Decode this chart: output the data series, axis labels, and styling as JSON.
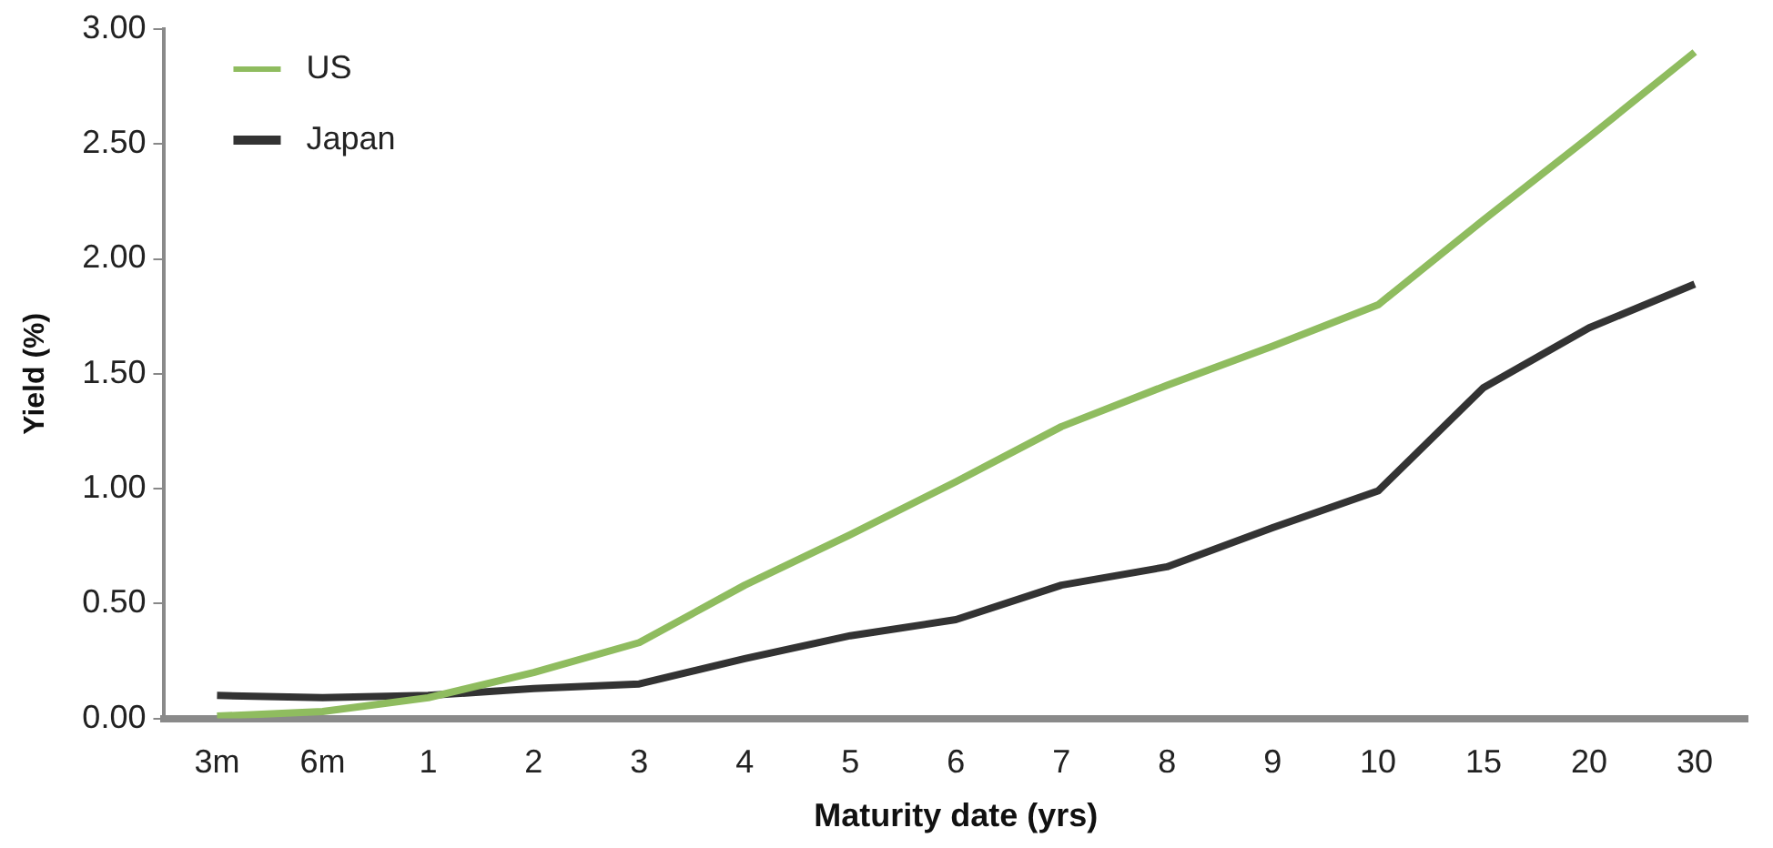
{
  "chart_data": {
    "type": "line",
    "xlabel": "Maturity date (yrs)",
    "ylabel": "Yield (%)",
    "categories": [
      "3m",
      "6m",
      "1",
      "2",
      "3",
      "4",
      "5",
      "6",
      "7",
      "8",
      "9",
      "10",
      "15",
      "20",
      "30"
    ],
    "series": [
      {
        "name": "US",
        "color": "#8fbc5f",
        "values": [
          0.01,
          0.03,
          0.09,
          0.2,
          0.33,
          0.58,
          0.8,
          1.03,
          1.27,
          1.45,
          1.62,
          1.8,
          2.17,
          2.53,
          2.9
        ]
      },
      {
        "name": "Japan",
        "color": "#333333",
        "values": [
          0.1,
          0.09,
          0.1,
          0.13,
          0.15,
          0.26,
          0.36,
          0.43,
          0.58,
          0.66,
          0.83,
          0.99,
          1.44,
          1.7,
          1.89
        ]
      }
    ],
    "ylim": [
      0,
      3
    ],
    "yticks": [
      {
        "value": 0,
        "label": "0.00"
      },
      {
        "value": 0.5,
        "label": "0.50"
      },
      {
        "value": 1,
        "label": "1.00"
      },
      {
        "value": 1.5,
        "label": "1.50"
      },
      {
        "value": 2,
        "label": "2.00"
      },
      {
        "value": 2.5,
        "label": "2.50"
      },
      {
        "value": 3,
        "label": "3.00"
      }
    ],
    "grid": false,
    "legend": "top left",
    "marker": "none",
    "line_style": "solid"
  }
}
